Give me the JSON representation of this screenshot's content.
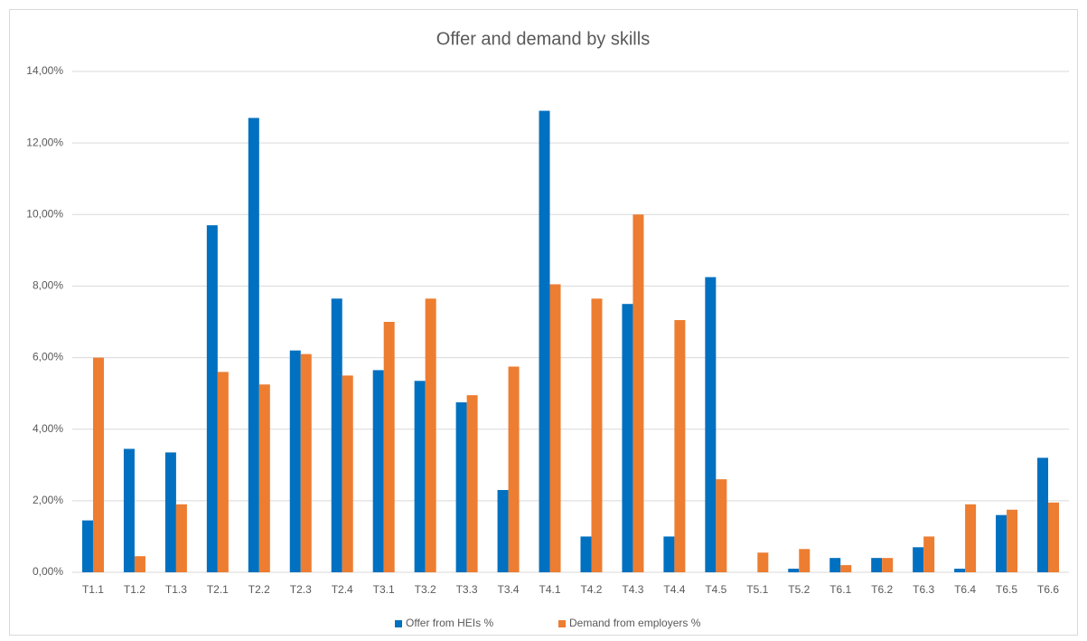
{
  "chart_data": {
    "type": "bar",
    "title": "Offer and demand by skills",
    "categories": [
      "T1.1",
      "T1.2",
      "T1.3",
      "T2.1",
      "T2.2",
      "T2.3",
      "T2.4",
      "T3.1",
      "T3.2",
      "T3.3",
      "T3.4",
      "T4.1",
      "T4.2",
      "T4.3",
      "T4.4",
      "T4.5",
      "T5.1",
      "T5.2",
      "T6.1",
      "T6.2",
      "T6.3",
      "T6.4",
      "T6.5",
      "T6.6"
    ],
    "series": [
      {
        "name": "Offer from HEIs %",
        "color": "#0070c0",
        "values": [
          1.45,
          3.45,
          3.35,
          9.7,
          12.7,
          6.2,
          7.65,
          5.65,
          5.35,
          4.75,
          2.3,
          12.9,
          1.0,
          7.5,
          1.0,
          8.25,
          0,
          0.1,
          0.4,
          0.4,
          0.7,
          0.1,
          1.6,
          3.2
        ]
      },
      {
        "name": "Demand from employers %",
        "color": "#ed7d31",
        "values": [
          6.0,
          0.45,
          1.9,
          5.6,
          5.25,
          6.1,
          5.5,
          7.0,
          7.65,
          4.95,
          5.75,
          8.05,
          7.65,
          10.0,
          7.05,
          2.6,
          0.55,
          0.65,
          0.2,
          0.4,
          1.0,
          1.9,
          1.75,
          1.95
        ]
      }
    ],
    "ylim": [
      0,
      14
    ],
    "yticks": [
      {
        "value": 0,
        "label": "0,00%"
      },
      {
        "value": 2,
        "label": "2,00%"
      },
      {
        "value": 4,
        "label": "4,00%"
      },
      {
        "value": 6,
        "label": "6,00%"
      },
      {
        "value": 8,
        "label": "8,00%"
      },
      {
        "value": 10,
        "label": "10,00%"
      },
      {
        "value": 12,
        "label": "12,00%"
      },
      {
        "value": 14,
        "label": "14,00%"
      }
    ],
    "grid": true,
    "legend": "bottom"
  }
}
